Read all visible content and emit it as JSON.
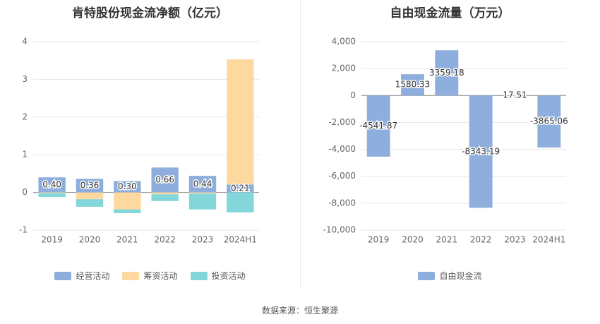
{
  "chart_data": [
    {
      "type": "bar",
      "stacked": true,
      "title": "肯特股份现金流净额（亿元）",
      "categories": [
        "2019",
        "2020",
        "2021",
        "2022",
        "2023",
        "2024H1"
      ],
      "ylim": [
        -1,
        4
      ],
      "yticks": [
        "4",
        "3",
        "2",
        "1",
        "0",
        "-1"
      ],
      "series": [
        {
          "name": "经营活动",
          "color": "#8eaedd",
          "values": [
            0.4,
            0.36,
            0.3,
            0.66,
            0.44,
            0.21
          ],
          "labels": [
            "0.40",
            "0.36",
            "0.30",
            "0.66",
            "0.44",
            "0.21"
          ]
        },
        {
          "name": "筹资活动",
          "color": "#fdd9a0",
          "values": [
            -0.02,
            -0.18,
            -0.45,
            -0.05,
            -0.03,
            3.32
          ]
        },
        {
          "name": "投资活动",
          "color": "#83d7da",
          "values": [
            -0.1,
            -0.2,
            -0.1,
            -0.18,
            -0.42,
            -0.53
          ]
        }
      ],
      "grid": true,
      "legend": "bottom"
    },
    {
      "type": "bar",
      "title": "自由现金流量（万元）",
      "categories": [
        "2019",
        "2020",
        "2021",
        "2022",
        "2023",
        "2024H1"
      ],
      "ylim": [
        -10000,
        4000
      ],
      "yticks": [
        "4,000",
        "2,000",
        "0",
        "-2,000",
        "-4,000",
        "-6,000",
        "-8,000",
        "-10,000"
      ],
      "series": [
        {
          "name": "自由现金流",
          "color": "#8eaedd",
          "values": [
            -4541.87,
            1580.33,
            3359.18,
            -8343.19,
            17.51,
            -3865.06
          ],
          "labels": [
            "-4541.87",
            "1580.33",
            "3359.18",
            "-8343.19",
            "17.51",
            "-3865.06"
          ]
        }
      ],
      "grid": true,
      "legend": "bottom"
    }
  ],
  "source": "数据来源：恒生聚源"
}
